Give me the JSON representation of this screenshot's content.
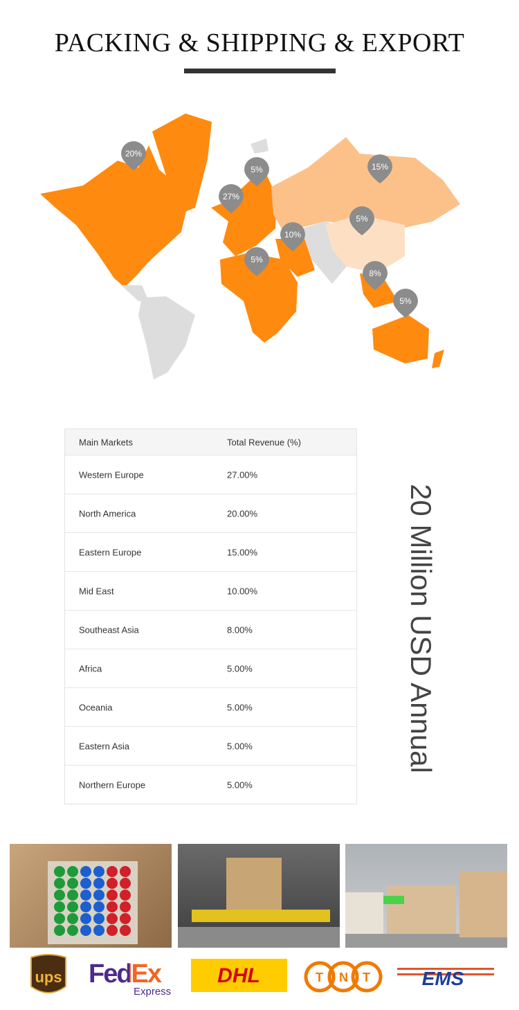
{
  "header": {
    "title": "PACKING & SHIPPING & EXPORT"
  },
  "map": {
    "colors": {
      "primary": "#ff8a10",
      "secondary": "#fcc189",
      "tertiary": "#fde0c4",
      "other": "#dddddd",
      "pin": "#8c8c8c"
    },
    "pins": [
      {
        "region": "North America",
        "label": "20%"
      },
      {
        "region": "Northern Europe",
        "label": "5%"
      },
      {
        "region": "Western Europe",
        "label": "27%"
      },
      {
        "region": "Eastern Europe",
        "label": "15%"
      },
      {
        "region": "Eastern Asia",
        "label": "5%"
      },
      {
        "region": "Mid East",
        "label": "10%"
      },
      {
        "region": "Africa",
        "label": "5%"
      },
      {
        "region": "Southeast Asia",
        "label": "8%"
      },
      {
        "region": "Oceania",
        "label": "5%"
      }
    ]
  },
  "table": {
    "headers": [
      "Main Markets",
      "Total Revenue (%)"
    ],
    "rows": [
      [
        "Western Europe",
        "27.00%"
      ],
      [
        "North America",
        "20.00%"
      ],
      [
        "Eastern Europe",
        "15.00%"
      ],
      [
        "Mid East",
        "10.00%"
      ],
      [
        "Southeast Asia",
        "8.00%"
      ],
      [
        "Africa",
        "5.00%"
      ],
      [
        "Oceania",
        "5.00%"
      ],
      [
        "Eastern Asia",
        "5.00%"
      ],
      [
        "Northern Europe",
        "5.00%"
      ]
    ]
  },
  "annual": "20 Million USD Annual",
  "carriers": [
    {
      "name": "UPS",
      "text": "ups"
    },
    {
      "name": "FedEx",
      "text": "FedEx",
      "sub": "Express"
    },
    {
      "name": "DHL",
      "text": "DHL"
    },
    {
      "name": "TNT",
      "text": "TNT"
    },
    {
      "name": "EMS",
      "text": "EMS"
    }
  ]
}
